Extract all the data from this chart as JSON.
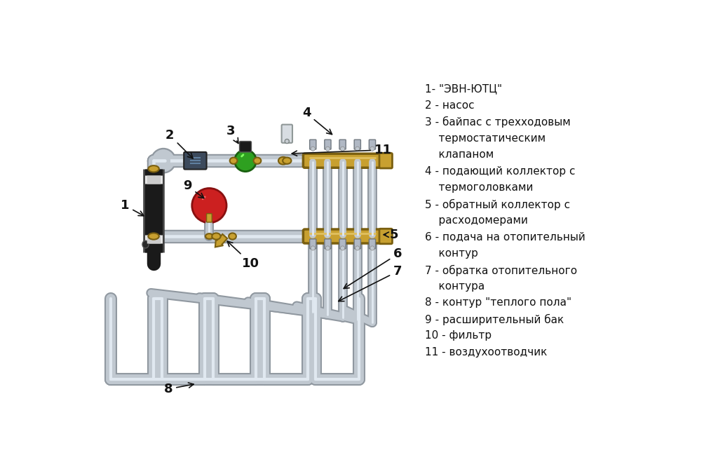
{
  "bg_color": "#ffffff",
  "pipe_color": "#c0c8d0",
  "pipe_edge_color": "#9098a0",
  "pipe_highlight": "#e0e8f0",
  "collector_color": "#c8a030",
  "collector_edge": "#7a5f10",
  "green_color": "#2ea020",
  "green_dark": "#1a6010",
  "red_color": "#cc2020",
  "red_dark": "#881010",
  "black_color": "#181818",
  "brass_color": "#c8a030",
  "label_color": "#111111",
  "arrow_color": "#111111",
  "legend_lines": [
    "1- \"ЭВН-ЮТЦ\"",
    "2 - насос",
    "3 - байпас с трехходовым",
    "    термостатическим",
    "    клапаном",
    "4 - подающий коллектор с",
    "    термоголовками",
    "5 - обратный коллектор с",
    "    расходомерами",
    "6 - подача на отопительный",
    "    контур",
    "7 - обратка отопительного",
    "    контура",
    "8 - контур \"теплого пола\"",
    "9 - расширительный бак",
    "10 - фильтр",
    "11 - воздухоотводчик"
  ]
}
